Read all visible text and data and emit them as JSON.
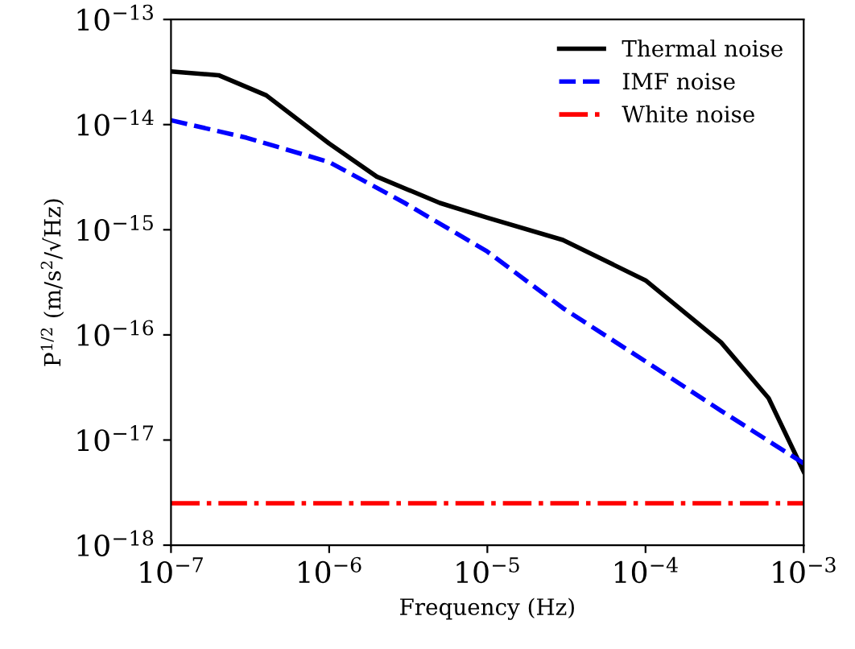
{
  "chart_data": {
    "type": "line",
    "xlabel": "Frequency (Hz)",
    "ylabel": "P$^{1/2}$ (m/s$^{2}$/√Hz)",
    "log": "xy",
    "grid": false,
    "legend": "top right",
    "xlim": [
      1e-07,
      0.001
    ],
    "ylim": [
      1e-18,
      1e-13
    ],
    "xticks": [
      {
        "value": 1e-07,
        "label": "10$^{−7}$"
      },
      {
        "value": 1e-06,
        "label": "10$^{−6}$"
      },
      {
        "value": 1e-05,
        "label": "10$^{−5}$"
      },
      {
        "value": 0.0001,
        "label": "10$^{−4}$"
      },
      {
        "value": 0.001,
        "label": "10$^{−3}$"
      }
    ],
    "yticks": [
      {
        "value": 1e-18,
        "label": "10$^{−18}$"
      },
      {
        "value": 1e-17,
        "label": "10$^{−17}$"
      },
      {
        "value": 1e-16,
        "label": "10$^{−16}$"
      },
      {
        "value": 1e-15,
        "label": "10$^{−15}$"
      },
      {
        "value": 1e-14,
        "label": "10$^{−14}$"
      },
      {
        "value": 1e-13,
        "label": "10$^{−13}$"
      }
    ],
    "series": [
      {
        "name": "Thermal noise",
        "color": "#000000",
        "line_style": "solid",
        "x": [
          1e-07,
          2e-07,
          4e-07,
          1e-06,
          2e-06,
          5e-06,
          1e-05,
          3e-05,
          0.0001,
          0.0003,
          0.0006,
          0.001
        ],
        "values": [
          3.2e-14,
          2.95e-14,
          1.9e-14,
          6.6e-15,
          3.2e-15,
          1.8e-15,
          1.3e-15,
          8e-16,
          3.3e-16,
          8.5e-17,
          2.5e-17,
          5e-18
        ]
      },
      {
        "name": "IMF noise",
        "color": "#0000ff",
        "line_style": "dashed",
        "x": [
          1e-07,
          3e-07,
          1e-06,
          3e-06,
          1e-05,
          3e-05,
          0.0001,
          0.0003,
          0.001
        ],
        "values": [
          1.1e-14,
          7.5e-15,
          4.4e-15,
          1.8e-15,
          6.2e-16,
          1.8e-16,
          5.6e-17,
          1.9e-17,
          6e-18
        ]
      },
      {
        "name": "White noise",
        "color": "#ff0000",
        "line_style": "dashdot",
        "x": [
          1e-07,
          0.001
        ],
        "values": [
          2.5e-18,
          2.5e-18
        ]
      }
    ]
  }
}
